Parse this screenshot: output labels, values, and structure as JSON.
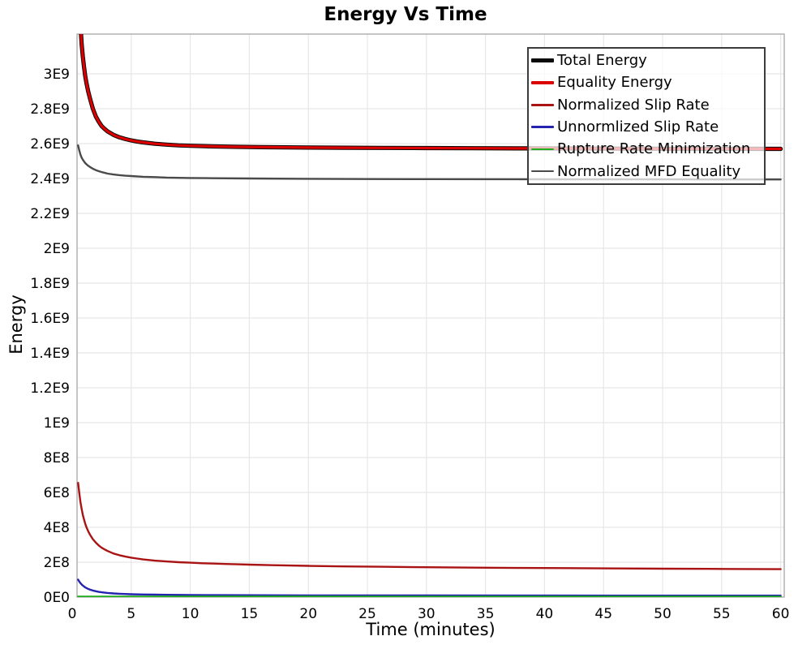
{
  "chart_data": {
    "type": "line",
    "title": "Energy Vs Time",
    "xlabel": "Time (minutes)",
    "ylabel": "Energy",
    "xlim": [
      0.41,
      60.3
    ],
    "ylim": [
      0,
      3228000000.0
    ],
    "grid": true,
    "legend_position": "top-right",
    "frame_color": "#a6a6a6",
    "grid_color": "#e7e7e7",
    "x_ticks": {
      "values": [
        0,
        5,
        10,
        15,
        20,
        25,
        30,
        35,
        40,
        45,
        50,
        55,
        60
      ],
      "labels": [
        "0",
        "5",
        "10",
        "15",
        "20",
        "25",
        "30",
        "35",
        "40",
        "45",
        "50",
        "55",
        "60"
      ]
    },
    "y_ticks": {
      "values": [
        0,
        200000000.0,
        400000000.0,
        600000000.0,
        800000000.0,
        1000000000.0,
        1200000000.0,
        1400000000.0,
        1600000000.0,
        1800000000.0,
        2000000000.0,
        2200000000.0,
        2400000000.0,
        2600000000.0,
        2800000000.0,
        3000000000.0
      ],
      "labels": [
        "0E0",
        "2E8",
        "4E8",
        "6E8",
        "8E8",
        "1E9",
        "1.2E9",
        "1.4E9",
        "1.6E9",
        "1.8E9",
        "2E9",
        "2.2E9",
        "2.4E9",
        "2.6E9",
        "2.8E9",
        "3E9"
      ]
    },
    "series": [
      {
        "name": "Total Energy",
        "color": "#0a0a0a",
        "width": 5.2,
        "points": [
          [
            0.5,
            3600000000.0
          ],
          [
            0.6,
            3420000000.0
          ],
          [
            0.7,
            3280000000.0
          ],
          [
            0.8,
            3170000000.0
          ],
          [
            0.9,
            3100000000.0
          ],
          [
            1.0,
            3040000000.0
          ],
          [
            1.1,
            2990000000.0
          ],
          [
            1.2,
            2950000000.0
          ],
          [
            1.35,
            2900000000.0
          ],
          [
            1.5,
            2860000000.0
          ],
          [
            1.75,
            2800000000.0
          ],
          [
            2,
            2755000000.0
          ],
          [
            2.25,
            2725000000.0
          ],
          [
            2.5,
            2700000000.0
          ],
          [
            2.75,
            2684000000.0
          ],
          [
            3,
            2670000000.0
          ],
          [
            3.5,
            2650000000.0
          ],
          [
            4,
            2636000000.0
          ],
          [
            4.5,
            2626000000.0
          ],
          [
            5,
            2618000000.0
          ],
          [
            5.5,
            2612000000.0
          ],
          [
            6,
            2607000000.0
          ],
          [
            7,
            2599000000.0
          ],
          [
            8,
            2594000000.0
          ],
          [
            9,
            2590000000.0
          ],
          [
            10,
            2587500000.0
          ],
          [
            12,
            2584000000.0
          ],
          [
            14,
            2581500000.0
          ],
          [
            16,
            2579800000.0
          ],
          [
            18,
            2578500000.0
          ],
          [
            20,
            2577500000.0
          ],
          [
            23,
            2576300000.0
          ],
          [
            26,
            2575300000.0
          ],
          [
            30,
            2574300000.0
          ],
          [
            34,
            2573400000.0
          ],
          [
            38,
            2572700000.0
          ],
          [
            42,
            2572000000.0
          ],
          [
            46,
            2571400000.0
          ],
          [
            50,
            2570900000.0
          ],
          [
            55,
            2570300000.0
          ],
          [
            60,
            2569800000.0
          ]
        ]
      },
      {
        "name": "Equality Energy",
        "color": "#dd0000",
        "width": 3.2,
        "points": [
          [
            0.5,
            3600000000.0
          ],
          [
            0.6,
            3420000000.0
          ],
          [
            0.7,
            3280000000.0
          ],
          [
            0.8,
            3170000000.0
          ],
          [
            0.9,
            3100000000.0
          ],
          [
            1.0,
            3040000000.0
          ],
          [
            1.1,
            2990000000.0
          ],
          [
            1.2,
            2950000000.0
          ],
          [
            1.35,
            2900000000.0
          ],
          [
            1.5,
            2860000000.0
          ],
          [
            1.75,
            2800000000.0
          ],
          [
            2,
            2755000000.0
          ],
          [
            2.25,
            2725000000.0
          ],
          [
            2.5,
            2700000000.0
          ],
          [
            2.75,
            2684000000.0
          ],
          [
            3,
            2670000000.0
          ],
          [
            3.5,
            2650000000.0
          ],
          [
            4,
            2636000000.0
          ],
          [
            4.5,
            2626000000.0
          ],
          [
            5,
            2618000000.0
          ],
          [
            5.5,
            2612000000.0
          ],
          [
            6,
            2607000000.0
          ],
          [
            7,
            2599000000.0
          ],
          [
            8,
            2594000000.0
          ],
          [
            9,
            2590000000.0
          ],
          [
            10,
            2587500000.0
          ],
          [
            12,
            2584000000.0
          ],
          [
            14,
            2581500000.0
          ],
          [
            16,
            2579800000.0
          ],
          [
            18,
            2578500000.0
          ],
          [
            20,
            2577500000.0
          ],
          [
            23,
            2576300000.0
          ],
          [
            26,
            2575300000.0
          ],
          [
            30,
            2574300000.0
          ],
          [
            34,
            2573400000.0
          ],
          [
            38,
            2572700000.0
          ],
          [
            42,
            2572000000.0
          ],
          [
            46,
            2571400000.0
          ],
          [
            50,
            2570900000.0
          ],
          [
            55,
            2570300000.0
          ],
          [
            60,
            2569800000.0
          ]
        ]
      },
      {
        "name": "Normalized Slip Rate",
        "color": "#aa1313",
        "width": 2.4,
        "points": [
          [
            0.5,
            655000000.0
          ],
          [
            0.6,
            595000000.0
          ],
          [
            0.7,
            545000000.0
          ],
          [
            0.8,
            505000000.0
          ],
          [
            0.9,
            472000000.0
          ],
          [
            1.0,
            445000000.0
          ],
          [
            1.1,
            422000000.0
          ],
          [
            1.2,
            402000000.0
          ],
          [
            1.35,
            378000000.0
          ],
          [
            1.5,
            358000000.0
          ],
          [
            1.75,
            332000000.0
          ],
          [
            2,
            312000000.0
          ],
          [
            2.25,
            296000000.0
          ],
          [
            2.5,
            283000000.0
          ],
          [
            2.75,
            273000000.0
          ],
          [
            3,
            264000000.0
          ],
          [
            3.5,
            250000000.0
          ],
          [
            4,
            240000000.0
          ],
          [
            4.5,
            232000000.0
          ],
          [
            5,
            226000000.0
          ],
          [
            5.5,
            221000000.0
          ],
          [
            6,
            216000000.0
          ],
          [
            7,
            209000000.0
          ],
          [
            8,
            204000000.0
          ],
          [
            9,
            200000000.0
          ],
          [
            10,
            197000000.0
          ],
          [
            11,
            194000000.0
          ],
          [
            12,
            192000000.0
          ],
          [
            13,
            190000000.0
          ],
          [
            14,
            188000000.0
          ],
          [
            15,
            186000000.0
          ],
          [
            17,
            183000000.0
          ],
          [
            20,
            179000000.0
          ],
          [
            23,
            176000000.0
          ],
          [
            26,
            174000000.0
          ],
          [
            30,
            171000000.0
          ],
          [
            34,
            169000000.0
          ],
          [
            38,
            167000000.0
          ],
          [
            42,
            166000000.0
          ],
          [
            46,
            164000000.0
          ],
          [
            50,
            163000000.0
          ],
          [
            54,
            162000000.0
          ],
          [
            57,
            161000000.0
          ],
          [
            60,
            160000000.0
          ]
        ]
      },
      {
        "name": "Unnormlized Slip Rate",
        "color": "#2323b0",
        "width": 2.4,
        "points": [
          [
            0.5,
            100000000.0
          ],
          [
            0.6,
            89000000.0
          ],
          [
            0.7,
            80000000.0
          ],
          [
            0.8,
            72000000.0
          ],
          [
            0.9,
            66000000.0
          ],
          [
            1.0,
            61000000.0
          ],
          [
            1.1,
            56000000.0
          ],
          [
            1.2,
            52000000.0
          ],
          [
            1.35,
            47000000.0
          ],
          [
            1.5,
            43000000.0
          ],
          [
            1.75,
            37500000.0
          ],
          [
            2,
            33500000.0
          ],
          [
            2.25,
            30000000.0
          ],
          [
            2.5,
            27500000.0
          ],
          [
            3,
            23500000.0
          ],
          [
            3.5,
            21000000.0
          ],
          [
            4,
            19000000.0
          ],
          [
            4.5,
            17500000.0
          ],
          [
            5,
            16500000.0
          ],
          [
            6,
            15000000.0
          ],
          [
            7,
            14000000.0
          ],
          [
            8,
            13000000.0
          ],
          [
            10,
            12000000.0
          ],
          [
            12,
            11300000.0
          ],
          [
            15,
            10600000.0
          ],
          [
            20,
            10000000.0
          ],
          [
            25,
            9600000.0
          ],
          [
            30,
            9300000.0
          ],
          [
            40,
            8900000.0
          ],
          [
            50,
            8600000.0
          ],
          [
            60,
            8400000.0
          ]
        ]
      },
      {
        "name": "Rupture Rate Minimization",
        "color": "#1eae1e",
        "width": 2.4,
        "points": [
          [
            0.5,
            3000000.0
          ],
          [
            5,
            2500000.0
          ],
          [
            20,
            2200000.0
          ],
          [
            60,
            2000000.0
          ]
        ]
      },
      {
        "name": "Normalized MFD Equality",
        "color": "#4a4a4a",
        "width": 2.4,
        "points": [
          [
            0.5,
            2590000000.0
          ],
          [
            0.6,
            2560000000.0
          ],
          [
            0.7,
            2537000000.0
          ],
          [
            0.8,
            2519000000.0
          ],
          [
            0.9,
            2508000000.0
          ],
          [
            1.0,
            2498000000.0
          ],
          [
            1.1,
            2489000000.0
          ],
          [
            1.2,
            2482000000.0
          ],
          [
            1.35,
            2473000000.0
          ],
          [
            1.5,
            2466000000.0
          ],
          [
            1.75,
            2456000000.0
          ],
          [
            2,
            2448000000.0
          ],
          [
            2.25,
            2442000000.0
          ],
          [
            2.5,
            2437000000.0
          ],
          [
            3,
            2428000000.0
          ],
          [
            3.5,
            2423000000.0
          ],
          [
            4,
            2419000000.0
          ],
          [
            4.5,
            2416000000.0
          ],
          [
            5,
            2414000000.0
          ],
          [
            6,
            2410000000.0
          ],
          [
            7,
            2408000000.0
          ],
          [
            8,
            2405000000.0
          ],
          [
            10,
            2403000000.0
          ],
          [
            12,
            2401500000.0
          ],
          [
            15,
            2400000000.0
          ],
          [
            20,
            2398000000.0
          ],
          [
            25,
            2397000000.0
          ],
          [
            30,
            2396500000.0
          ],
          [
            40,
            2395500000.0
          ],
          [
            50,
            2395000000.0
          ],
          [
            60,
            2394500000.0
          ]
        ]
      }
    ]
  }
}
